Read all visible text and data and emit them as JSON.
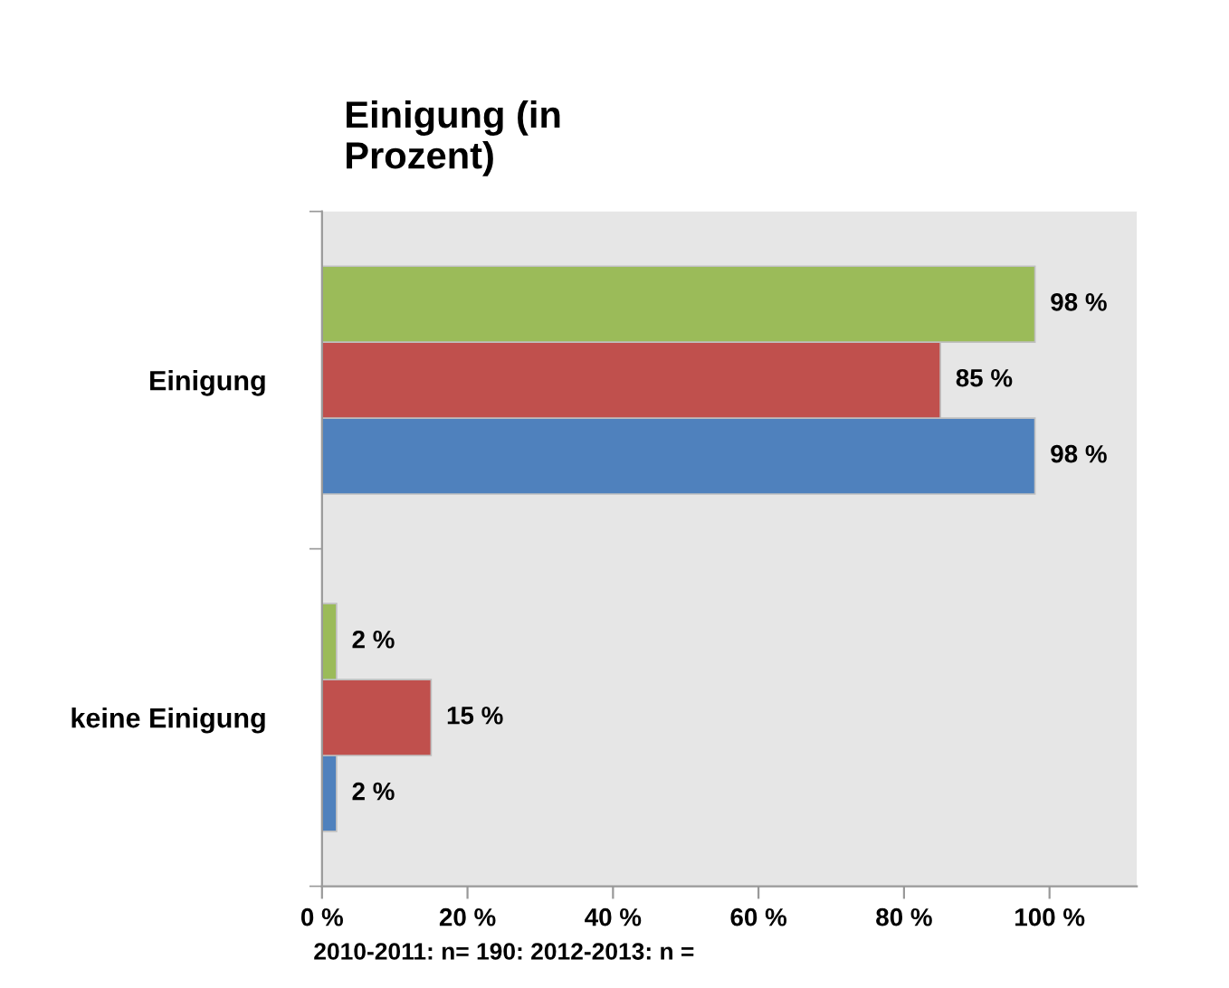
{
  "chart_data": {
    "type": "bar",
    "orientation": "horizontal",
    "title": "Einigung (in\nProzent)",
    "categories": [
      "Einigung",
      "keine Einigung"
    ],
    "series": [
      {
        "color": "#4f81bd",
        "values": [
          98,
          2
        ],
        "value_labels": [
          "98 %",
          "2 %"
        ]
      },
      {
        "color": "#c0504d",
        "values": [
          85,
          15
        ],
        "value_labels": [
          "85 %",
          "15 %"
        ]
      },
      {
        "color": "#9bbb59",
        "values": [
          98,
          2
        ],
        "value_labels": [
          "98 %",
          "2 %"
        ]
      }
    ],
    "xlim": [
      0,
      112
    ],
    "xticks": [
      {
        "value": 0,
        "label": "0 %"
      },
      {
        "value": 20,
        "label": "20 %"
      },
      {
        "value": 40,
        "label": "40 %"
      },
      {
        "value": 60,
        "label": "60 %"
      },
      {
        "value": 80,
        "label": "80 %"
      },
      {
        "value": 100,
        "label": "100 %"
      }
    ],
    "grid": false,
    "legend": false,
    "annotations": [
      "2010-2011: n= 190: 2012-2013: n ="
    ]
  }
}
